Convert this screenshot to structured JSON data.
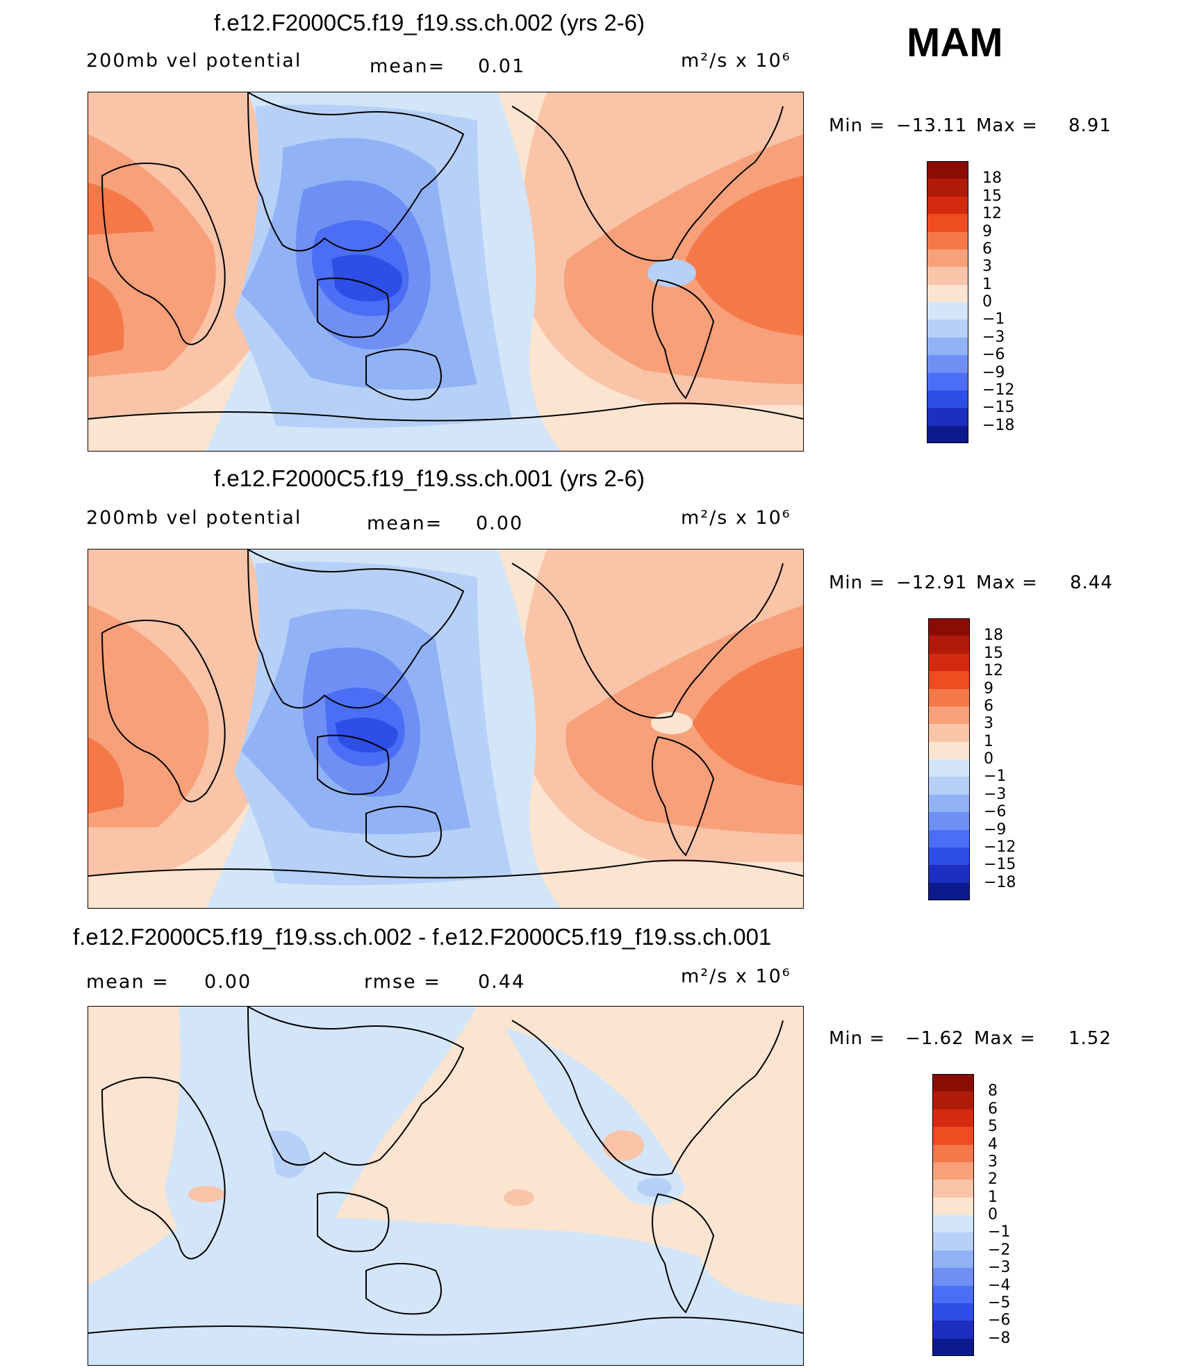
{
  "season": "MAM",
  "colors": {
    "warm": [
      "#fbe4d0",
      "#f9c4a8",
      "#f7a07a",
      "#f47848",
      "#ef4c22",
      "#d42a10",
      "#b01a08",
      "#8a0c05"
    ],
    "cool": [
      "#d3e6f9",
      "#b7d0f7",
      "#92b2f6",
      "#6f8ff5",
      "#4b6ef4",
      "#2e4ee8",
      "#1c2fc0",
      "#0d1a8e"
    ],
    "coastline": "#000000"
  },
  "panels": [
    {
      "title": "f.e12.F2000C5.f19_f19.ss.ch.002 (yrs 2-6)",
      "left_label": "200mb vel potential",
      "mean_label": "mean=",
      "mean_value": "0.01",
      "units": "m²/s x 10⁶",
      "min_label": "Min = ",
      "min_value": "−13.11",
      "max_label": "Max = ",
      "max_value": "8.91",
      "levels": [
        "18",
        "15",
        "12",
        "9",
        "6",
        "3",
        "1",
        "0",
        "−1",
        "−3",
        "−6",
        "−9",
        "−12",
        "−15",
        "−18"
      ]
    },
    {
      "title": "f.e12.F2000C5.f19_f19.ss.ch.001 (yrs 2-6)",
      "left_label": "200mb vel potential",
      "mean_label": "mean=",
      "mean_value": "0.00",
      "units": "m²/s x 10⁶",
      "min_label": "Min = ",
      "min_value": "−12.91",
      "max_label": "Max = ",
      "max_value": "8.44",
      "levels": [
        "18",
        "15",
        "12",
        "9",
        "6",
        "3",
        "1",
        "0",
        "−1",
        "−3",
        "−6",
        "−9",
        "−12",
        "−15",
        "−18"
      ]
    },
    {
      "title": "f.e12.F2000C5.f19_f19.ss.ch.002 - f.e12.F2000C5.f19_f19.ss.ch.001",
      "left_label": "mean =",
      "left_value": "0.00",
      "mean_label": "rmse =",
      "mean_value": "0.44",
      "units": "m²/s x 10⁶",
      "min_label": "Min = ",
      "min_value": "−1.62",
      "max_label": "Max = ",
      "max_value": "1.52",
      "levels": [
        "8",
        "6",
        "5",
        "4",
        "3",
        "2",
        "1",
        "0",
        "−1",
        "−2",
        "−3",
        "−4",
        "−5",
        "−6",
        "−8"
      ]
    }
  ]
}
